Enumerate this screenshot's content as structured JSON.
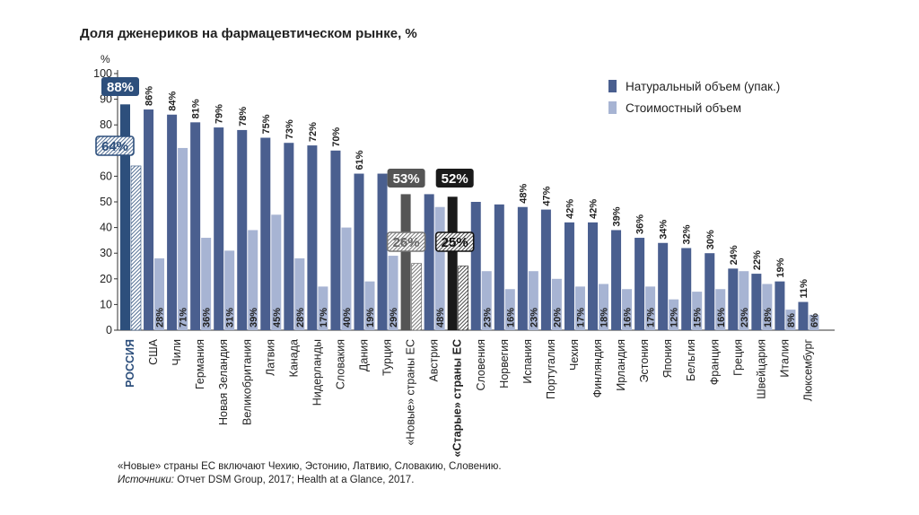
{
  "chart_data": {
    "type": "bar",
    "title": "Доля дженериков на фармацевтическом рынке, %",
    "ylabel": "%",
    "ylim": [
      0,
      100
    ],
    "yticks": [
      0,
      10,
      20,
      30,
      40,
      50,
      60,
      70,
      80,
      90,
      100
    ],
    "legend_position": "top-right",
    "categories": [
      "РОССИЯ",
      "США",
      "Чили",
      "Германия",
      "Новая Зеландия",
      "Великобритания",
      "Латвия",
      "Канада",
      "Нидерланды",
      "Словакия",
      "Дания",
      "Турция",
      "«Новые» страны ЕС",
      "Австрия",
      "«Старые» страны ЕС",
      "Словения",
      "Норвегия",
      "Испания",
      "Португалия",
      "Чехия",
      "Финляндия",
      "Ирландия",
      "Эстония",
      "Япония",
      "Бельгия",
      "Франция",
      "Греция",
      "Швейцария",
      "Италия",
      "Люксембург"
    ],
    "series": [
      {
        "name": "Натуральный объем (упак.)",
        "values": [
          88,
          86,
          84,
          81,
          79,
          78,
          75,
          73,
          72,
          70,
          61,
          61,
          53,
          53,
          52,
          50,
          49,
          48,
          47,
          42,
          42,
          39,
          36,
          34,
          32,
          30,
          24,
          22,
          19,
          11
        ]
      },
      {
        "name": "Стоимостный объем",
        "values": [
          64,
          28,
          71,
          36,
          31,
          39,
          45,
          28,
          17,
          40,
          19,
          29,
          26,
          48,
          25,
          23,
          16,
          23,
          20,
          17,
          18,
          16,
          17,
          12,
          15,
          16,
          23,
          18,
          8,
          6
        ]
      }
    ],
    "vol_labels": [
      "88%",
      "86%",
      "84%",
      "81%",
      "79%",
      "78%",
      "75%",
      "73%",
      "72%",
      "70%",
      "61%",
      "",
      "53%",
      "",
      "52%",
      "",
      "",
      "48%",
      "47%",
      "42%",
      "42%",
      "39%",
      "36%",
      "34%",
      "32%",
      "30%",
      "24%",
      "22%",
      "19%",
      "11%"
    ],
    "val_labels": [
      "64%",
      "28%",
      "71%",
      "36%",
      "31%",
      "39%",
      "45%",
      "28%",
      "17%",
      "40%",
      "19%",
      "29%",
      "26%",
      "48%",
      "25%",
      "23%",
      "16%",
      "23%",
      "20%",
      "17%",
      "18%",
      "16%",
      "17%",
      "12%",
      "15%",
      "16%",
      "23%",
      "18%",
      "8%",
      "6%"
    ]
  },
  "note": {
    "line1": "«Новые» страны ЕС включают Чехию, Эстонию, Латвию, Словакию, Словению.",
    "sources_label": "Источники:",
    "sources_text": " Отчет DSM Group, 2017; Health at a Glance, 2017."
  },
  "colors": {
    "vol": "#4a5f8f",
    "val": "#a7b4d3",
    "russia": "#2d4f7c",
    "new_eu": "#555555",
    "old_eu": "#1a1a1a"
  }
}
